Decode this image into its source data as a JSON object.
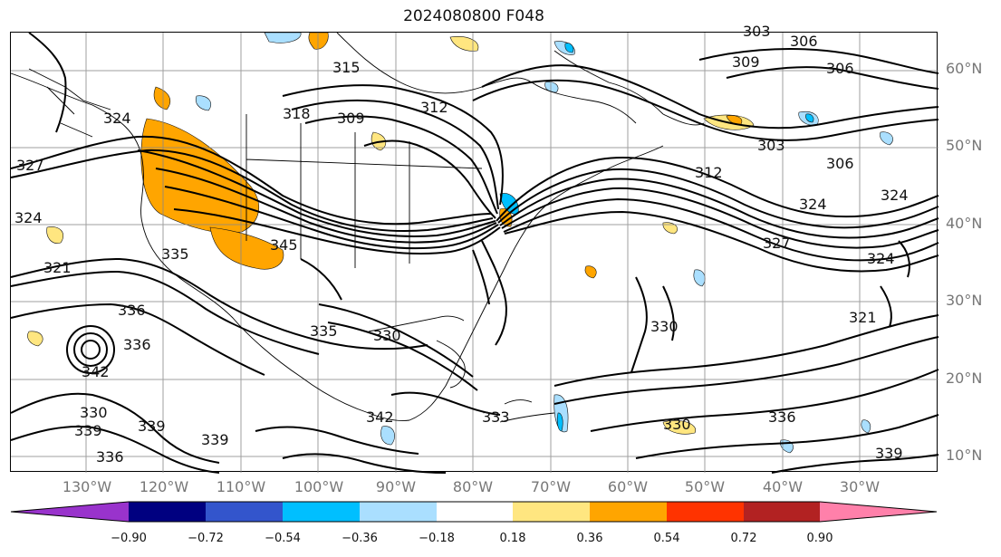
{
  "title": "2024080800 F048",
  "lat_labels": [
    "60°N",
    "50°N",
    "40°N",
    "30°N",
    "20°N",
    "10°N"
  ],
  "lon_labels": [
    "130°W",
    "120°W",
    "110°W",
    "100°W",
    "90°W",
    "80°W",
    "70°W",
    "60°W",
    "50°W",
    "40°W",
    "30°W"
  ],
  "colorbar": {
    "ticks": [
      "−0.90",
      "−0.72",
      "−0.54",
      "−0.36",
      "−0.18",
      "0.18",
      "0.36",
      "0.54",
      "0.72",
      "0.90"
    ],
    "colors": [
      "#9933cc",
      "#000080",
      "#3355cc",
      "#00bfff",
      "#aadfff",
      "#ffffff",
      "#ffe680",
      "#ffa500",
      "#ff3300",
      "#b22222",
      "#ff80aa"
    ]
  },
  "contour_labels": [
    "315",
    "318",
    "309",
    "312",
    "324",
    "327",
    "324",
    "321",
    "335",
    "345",
    "336",
    "336",
    "342",
    "330",
    "339",
    "336",
    "330",
    "339",
    "333",
    "339",
    "342",
    "335",
    "312",
    "306",
    "303",
    "309",
    "306",
    "324",
    "324",
    "327",
    "321",
    "324",
    "330",
    "303",
    "306",
    "336",
    "339",
    "330"
  ],
  "shading_colors": {
    "positive_light": "#ffe680",
    "positive_strong": "#ffa500",
    "negative_light": "#aadfff",
    "negative_strong": "#00bfff"
  }
}
